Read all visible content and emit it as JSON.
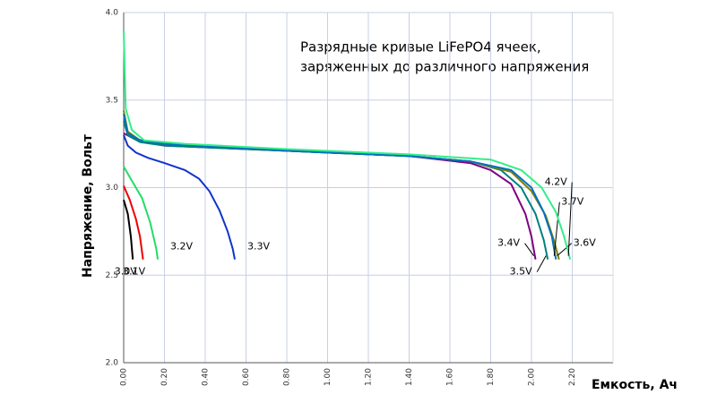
{
  "chart_data": {
    "type": "line",
    "title": [
      "Разрядные кривые LiFePO4 ячеек,",
      "заряженных до различного напряжения"
    ],
    "x_label": "Емкость, Ач",
    "y_label": "Напряжение, Вольт",
    "xlim": [
      0,
      2.4
    ],
    "ylim": [
      2.0,
      4.0
    ],
    "xticks": [
      {
        "value": 0,
        "label": "0.00"
      },
      {
        "value": 0.2,
        "label": "0.20"
      },
      {
        "value": 0.4,
        "label": "0.40"
      },
      {
        "value": 0.6,
        "label": "0.60"
      },
      {
        "value": 0.8,
        "label": "0.80"
      },
      {
        "value": 1.0,
        "label": "1.00"
      },
      {
        "value": 1.2,
        "label": "1.20"
      },
      {
        "value": 1.4,
        "label": "1.40"
      },
      {
        "value": 1.6,
        "label": "1.60"
      },
      {
        "value": 1.8,
        "label": "1.80"
      },
      {
        "value": 2.0,
        "label": "2.00"
      },
      {
        "value": 2.2,
        "label": "2.20"
      }
    ],
    "yticks": [
      {
        "value": 2,
        "label": "2.0"
      },
      2.5,
      {
        "value": 3,
        "label": "3.0"
      },
      3.5,
      {
        "value": 4,
        "label": "4.0"
      }
    ],
    "grid": true,
    "series": [
      {
        "name": "3.0V",
        "color": "#000000",
        "x": [
          0,
          0.02,
          0.035,
          0.045
        ],
        "values": [
          2.93,
          2.85,
          2.72,
          2.59
        ]
      },
      {
        "name": "3.1V",
        "color": "#ee0000",
        "x": [
          0,
          0.03,
          0.06,
          0.08,
          0.095
        ],
        "values": [
          3.01,
          2.93,
          2.82,
          2.72,
          2.59
        ]
      },
      {
        "name": "3.2V",
        "color": "#22dd66",
        "x": [
          0,
          0.04,
          0.09,
          0.13,
          0.16,
          0.167
        ],
        "values": [
          3.12,
          3.04,
          2.94,
          2.8,
          2.65,
          2.59
        ]
      },
      {
        "name": "3.3V",
        "color": "#1133cc",
        "x": [
          0,
          0.02,
          0.06,
          0.12,
          0.2,
          0.3,
          0.37,
          0.42,
          0.47,
          0.51,
          0.535,
          0.545
        ],
        "values": [
          3.3,
          3.24,
          3.2,
          3.17,
          3.14,
          3.1,
          3.05,
          2.98,
          2.87,
          2.75,
          2.65,
          2.59
        ]
      },
      {
        "name": "3.4V",
        "color": "#800080",
        "x": [
          0,
          0.05,
          0.2,
          0.8,
          1.4,
          1.7,
          1.8,
          1.9,
          1.97,
          2.0,
          2.02
        ],
        "values": [
          3.31,
          3.28,
          3.24,
          3.21,
          3.18,
          3.14,
          3.1,
          3.02,
          2.85,
          2.72,
          2.59
        ]
      },
      {
        "name": "3.5V",
        "color": "#008080",
        "x": [
          0,
          0.02,
          0.08,
          0.2,
          0.8,
          1.4,
          1.7,
          1.85,
          1.95,
          2.02,
          2.06,
          2.08
        ],
        "values": [
          3.38,
          3.3,
          3.26,
          3.24,
          3.21,
          3.18,
          3.15,
          3.1,
          3.0,
          2.85,
          2.7,
          2.59
        ]
      },
      {
        "name": "3.6V",
        "color": "#808000",
        "x": [
          0,
          0.02,
          0.08,
          0.2,
          0.8,
          1.4,
          1.7,
          1.9,
          2.0,
          2.07,
          2.11,
          2.135
        ],
        "values": [
          3.44,
          3.32,
          3.27,
          3.25,
          3.21,
          3.18,
          3.15,
          3.09,
          2.98,
          2.84,
          2.7,
          2.59
        ]
      },
      {
        "name": "3.7V",
        "color": "#0070c0",
        "x": [
          0,
          0.02,
          0.08,
          0.2,
          0.8,
          1.4,
          1.7,
          1.9,
          2.0,
          2.06,
          2.1,
          2.12
        ],
        "values": [
          3.42,
          3.31,
          3.27,
          3.25,
          3.21,
          3.18,
          3.15,
          3.1,
          3.0,
          2.86,
          2.72,
          2.59
        ]
      },
      {
        "name": "4.2V",
        "color": "#33ee88",
        "x": [
          0,
          0.01,
          0.04,
          0.1,
          0.3,
          0.8,
          1.4,
          1.8,
          1.95,
          2.05,
          2.12,
          2.16,
          2.19
        ],
        "values": [
          3.9,
          3.45,
          3.33,
          3.27,
          3.25,
          3.22,
          3.19,
          3.16,
          3.1,
          3.0,
          2.86,
          2.72,
          2.59
        ]
      }
    ]
  }
}
